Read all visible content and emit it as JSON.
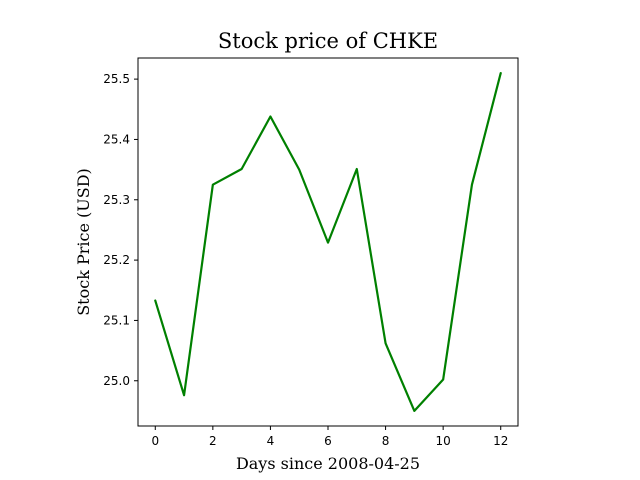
{
  "chart_data": {
    "type": "line",
    "title": "Stock price of CHKE",
    "xlabel": "Days since 2008-04-25",
    "ylabel": "Stock Price (USD)",
    "xlim": [
      -0.6,
      12.6
    ],
    "ylim": [
      24.925,
      25.535
    ],
    "x_ticks": [
      0,
      2,
      4,
      6,
      8,
      10,
      12
    ],
    "y_ticks": [
      25.0,
      25.1,
      25.2,
      25.3,
      25.4,
      25.5
    ],
    "x_tick_labels": [
      "0",
      "2",
      "4",
      "6",
      "8",
      "10",
      "12"
    ],
    "y_tick_labels": [
      "25.0",
      "25.1",
      "25.2",
      "25.3",
      "25.4",
      "25.5"
    ],
    "grid": false,
    "legend": "none",
    "series": [
      {
        "color": "#008000",
        "x": [
          0,
          1,
          2,
          3,
          4,
          5,
          6,
          7,
          8,
          9,
          10,
          11,
          12
        ],
        "values": [
          25.133,
          24.976,
          25.325,
          25.351,
          25.438,
          25.35,
          25.229,
          25.351,
          25.062,
          24.95,
          25.002,
          25.325,
          25.51
        ]
      }
    ]
  }
}
